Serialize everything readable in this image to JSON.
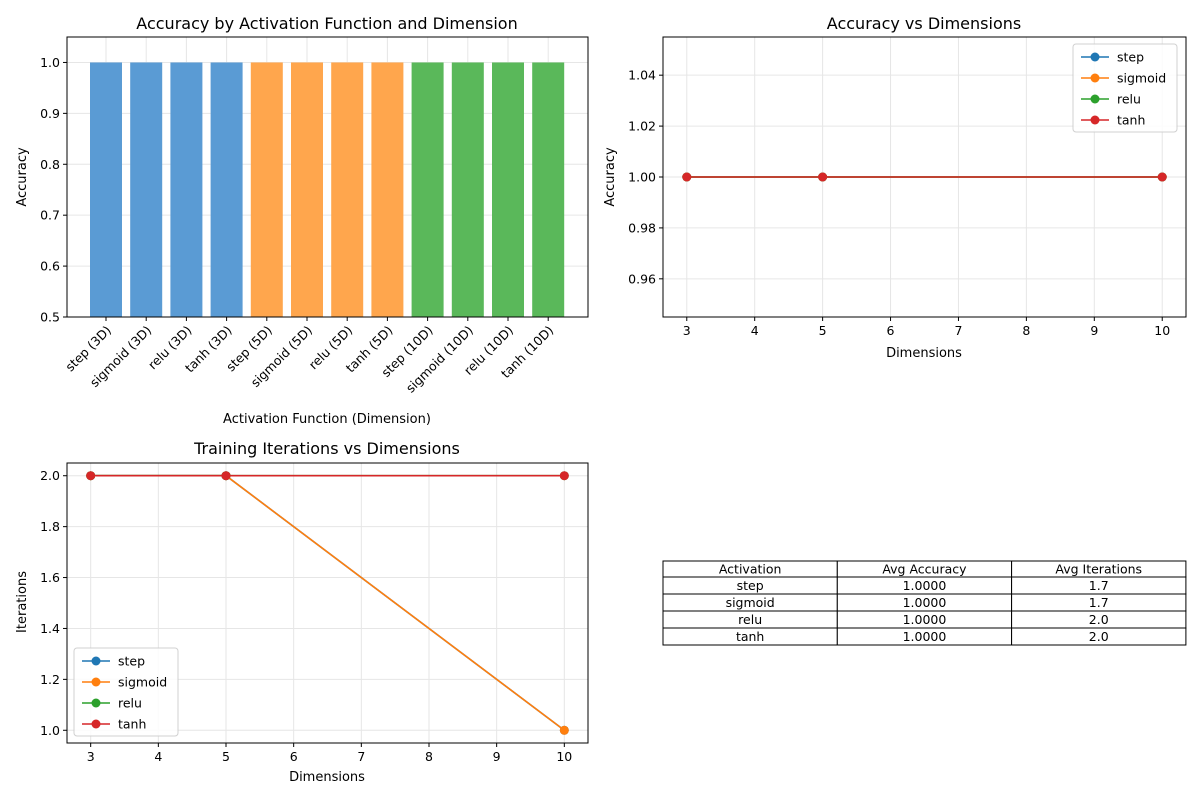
{
  "chart_data": [
    {
      "type": "bar",
      "title": "Accuracy by Activation Function and Dimension",
      "xlabel": "Activation Function (Dimension)",
      "ylabel": "Accuracy",
      "ylim": [
        0.5,
        1.05
      ],
      "yticks": [
        "0.5",
        "0.6",
        "0.7",
        "0.8",
        "0.9",
        "1.0"
      ],
      "categories": [
        "step (3D)",
        "sigmoid (3D)",
        "relu (3D)",
        "tanh (3D)",
        "step (5D)",
        "sigmoid (5D)",
        "relu (5D)",
        "tanh (5D)",
        "step (10D)",
        "sigmoid (10D)",
        "relu (10D)",
        "tanh (10D)"
      ],
      "values": [
        1.0,
        1.0,
        1.0,
        1.0,
        1.0,
        1.0,
        1.0,
        1.0,
        1.0,
        1.0,
        1.0,
        1.0
      ],
      "bar_colors": [
        "#5a9bd4",
        "#5a9bd4",
        "#5a9bd4",
        "#5a9bd4",
        "#ffa64d",
        "#ffa64d",
        "#ffa64d",
        "#ffa64d",
        "#5ab85a",
        "#5ab85a",
        "#5ab85a",
        "#5ab85a"
      ],
      "grid": true
    },
    {
      "type": "line",
      "title": "Accuracy vs Dimensions",
      "xlabel": "Dimensions",
      "ylabel": "Accuracy",
      "xlim": [
        2.65,
        10.35
      ],
      "ylim": [
        0.945,
        1.055
      ],
      "xticks": [
        "3",
        "4",
        "5",
        "6",
        "7",
        "8",
        "9",
        "10"
      ],
      "yticks": [
        "0.96",
        "0.98",
        "1.00",
        "1.02",
        "1.04"
      ],
      "x": [
        3,
        5,
        10
      ],
      "series": [
        {
          "name": "step",
          "color": "#1f77b4",
          "values": [
            1.0,
            1.0,
            1.0
          ]
        },
        {
          "name": "sigmoid",
          "color": "#ff7f0e",
          "values": [
            1.0,
            1.0,
            1.0
          ]
        },
        {
          "name": "relu",
          "color": "#2ca02c",
          "values": [
            1.0,
            1.0,
            1.0
          ]
        },
        {
          "name": "tanh",
          "color": "#d62728",
          "values": [
            1.0,
            1.0,
            1.0
          ]
        }
      ],
      "legend": "top-right",
      "grid": true
    },
    {
      "type": "line",
      "title": "Training Iterations vs Dimensions",
      "xlabel": "Dimensions",
      "ylabel": "Iterations",
      "xlim": [
        2.65,
        10.35
      ],
      "ylim": [
        0.95,
        2.05
      ],
      "xticks": [
        "3",
        "4",
        "5",
        "6",
        "7",
        "8",
        "9",
        "10"
      ],
      "yticks": [
        "1.0",
        "1.2",
        "1.4",
        "1.6",
        "1.8",
        "2.0"
      ],
      "x": [
        3,
        5,
        10
      ],
      "series": [
        {
          "name": "step",
          "color": "#1f77b4",
          "values": [
            2,
            2,
            1
          ]
        },
        {
          "name": "sigmoid",
          "color": "#ff7f0e",
          "values": [
            2,
            2,
            1
          ]
        },
        {
          "name": "relu",
          "color": "#2ca02c",
          "values": [
            2,
            2,
            2
          ]
        },
        {
          "name": "tanh",
          "color": "#d62728",
          "values": [
            2,
            2,
            2
          ]
        }
      ],
      "legend": "lower-left",
      "grid": true
    },
    {
      "type": "table",
      "columns": [
        "Activation",
        "Avg Accuracy",
        "Avg Iterations"
      ],
      "rows": [
        [
          "step",
          "1.0000",
          "1.7"
        ],
        [
          "sigmoid",
          "1.0000",
          "1.7"
        ],
        [
          "relu",
          "1.0000",
          "2.0"
        ],
        [
          "tanh",
          "1.0000",
          "2.0"
        ]
      ]
    }
  ]
}
